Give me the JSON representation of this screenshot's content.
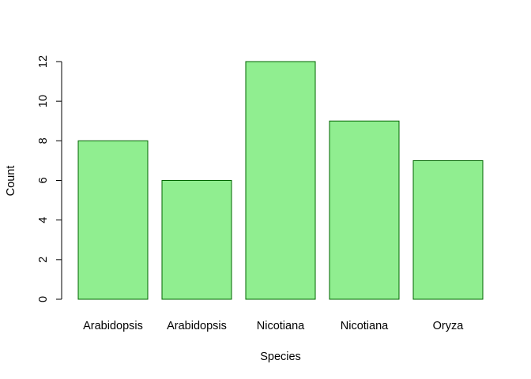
{
  "chart_data": {
    "type": "bar",
    "title": "",
    "xlabel": "Species",
    "ylabel": "Count",
    "categories": [
      "Arabidopsis",
      "Arabidopsis",
      "Nicotiana",
      "Nicotiana",
      "Oryza"
    ],
    "values": [
      8,
      6,
      12,
      9,
      7
    ],
    "ylim": [
      0,
      12
    ],
    "yticks": [
      0,
      2,
      4,
      6,
      8,
      10,
      12
    ],
    "grid": false,
    "bar_fill": "#90EE90",
    "bar_stroke": "#006400"
  }
}
